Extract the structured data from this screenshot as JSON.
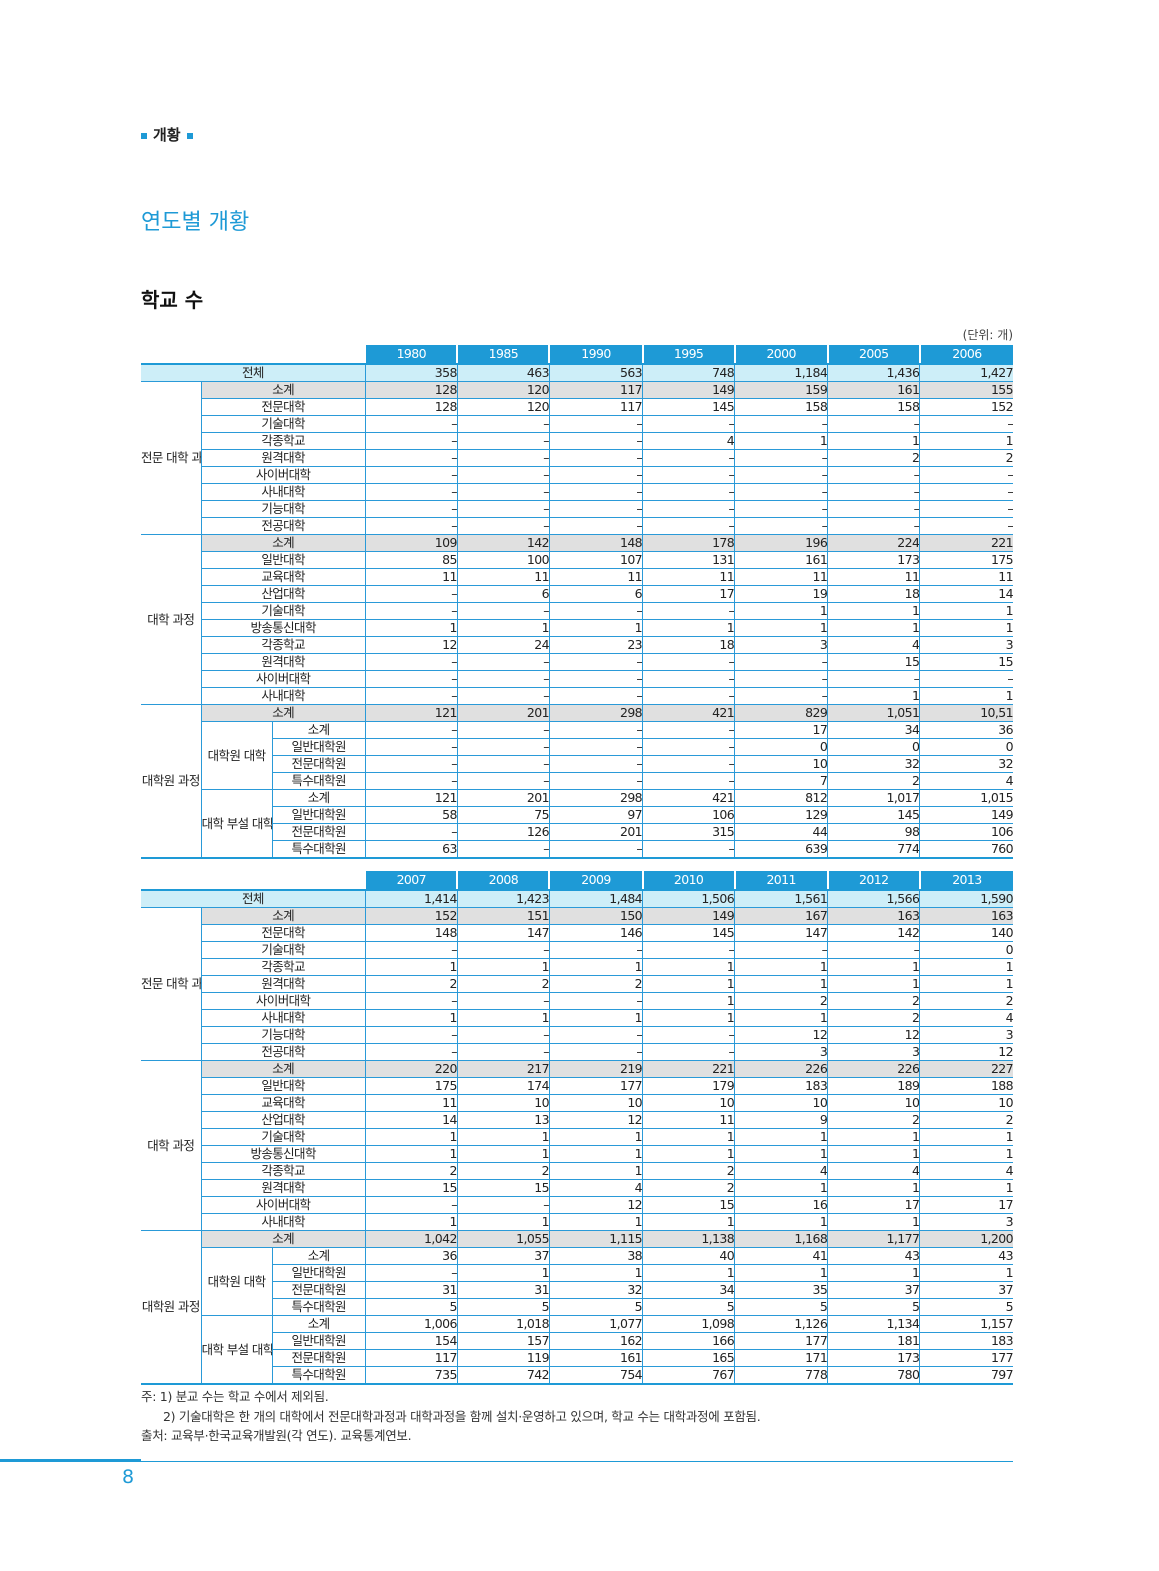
{
  "header": {
    "section_tag": "개황"
  },
  "page_title": "연도별 개황",
  "sub_title": "학교 수",
  "unit": "(단위: 개)",
  "colors": {
    "accent": "#1e9ad6",
    "total_row": "#cdeef8",
    "subtotal_row": "#e0e0e0"
  },
  "tables": [
    {
      "years": [
        "1980",
        "1985",
        "1990",
        "1995",
        "2000",
        "2005",
        "2006"
      ],
      "total": {
        "label": "전체",
        "values": [
          "358",
          "463",
          "563",
          "748",
          "1,184",
          "1,436",
          "1,427"
        ]
      },
      "groups": [
        {
          "label": "전문\n대학\n과정",
          "rows": [
            {
              "label": "소계",
              "subtotal": true,
              "values": [
                "128",
                "120",
                "117",
                "149",
                "159",
                "161",
                "155"
              ]
            },
            {
              "label": "전문대학",
              "values": [
                "128",
                "120",
                "117",
                "145",
                "158",
                "158",
                "152"
              ]
            },
            {
              "label": "기술대학",
              "values": [
                "–",
                "–",
                "–",
                "–",
                "–",
                "–",
                "–"
              ]
            },
            {
              "label": "각종학교",
              "values": [
                "–",
                "–",
                "–",
                "4",
                "1",
                "1",
                "1"
              ]
            },
            {
              "label": "원격대학",
              "values": [
                "–",
                "–",
                "–",
                "–",
                "–",
                "2",
                "2"
              ]
            },
            {
              "label": "사이버대학",
              "values": [
                "–",
                "–",
                "–",
                "–",
                "–",
                "–",
                "–"
              ]
            },
            {
              "label": "사내대학",
              "values": [
                "–",
                "–",
                "–",
                "–",
                "–",
                "–",
                "–"
              ]
            },
            {
              "label": "기능대학",
              "values": [
                "–",
                "–",
                "–",
                "–",
                "–",
                "–",
                "–"
              ]
            },
            {
              "label": "전공대학",
              "values": [
                "–",
                "–",
                "–",
                "–",
                "–",
                "–",
                "–"
              ]
            }
          ]
        },
        {
          "label": "대학\n과정",
          "rows": [
            {
              "label": "소계",
              "subtotal": true,
              "values": [
                "109",
                "142",
                "148",
                "178",
                "196",
                "224",
                "221"
              ]
            },
            {
              "label": "일반대학",
              "values": [
                "85",
                "100",
                "107",
                "131",
                "161",
                "173",
                "175"
              ]
            },
            {
              "label": "교육대학",
              "values": [
                "11",
                "11",
                "11",
                "11",
                "11",
                "11",
                "11"
              ]
            },
            {
              "label": "산업대학",
              "values": [
                "–",
                "6",
                "6",
                "17",
                "19",
                "18",
                "14"
              ]
            },
            {
              "label": "기술대학",
              "values": [
                "–",
                "–",
                "–",
                "–",
                "1",
                "1",
                "1"
              ]
            },
            {
              "label": "방송통신대학",
              "values": [
                "1",
                "1",
                "1",
                "1",
                "1",
                "1",
                "1"
              ]
            },
            {
              "label": "각종학교",
              "values": [
                "12",
                "24",
                "23",
                "18",
                "3",
                "4",
                "3"
              ]
            },
            {
              "label": "원격대학",
              "values": [
                "–",
                "–",
                "–",
                "–",
                "–",
                "15",
                "15"
              ]
            },
            {
              "label": "사이버대학",
              "values": [
                "–",
                "–",
                "–",
                "–",
                "–",
                "–",
                "–"
              ]
            },
            {
              "label": "사내대학",
              "values": [
                "–",
                "–",
                "–",
                "–",
                "–",
                "1",
                "1"
              ]
            }
          ]
        },
        {
          "label": "대학원\n과정",
          "subtotal": {
            "label": "소계",
            "values": [
              "121",
              "201",
              "298",
              "421",
              "829",
              "1,051",
              "10,51"
            ]
          },
          "subgroups": [
            {
              "label": "대학원\n대학",
              "rows": [
                {
                  "label": "소계",
                  "values": [
                    "–",
                    "–",
                    "–",
                    "–",
                    "17",
                    "34",
                    "36"
                  ]
                },
                {
                  "label": "일반대학원",
                  "values": [
                    "–",
                    "–",
                    "–",
                    "–",
                    "0",
                    "0",
                    "0"
                  ]
                },
                {
                  "label": "전문대학원",
                  "values": [
                    "–",
                    "–",
                    "–",
                    "–",
                    "10",
                    "32",
                    "32"
                  ]
                },
                {
                  "label": "특수대학원",
                  "values": [
                    "–",
                    "–",
                    "–",
                    "–",
                    "7",
                    "2",
                    "4"
                  ]
                }
              ]
            },
            {
              "label": "대학\n부설\n대학원",
              "rows": [
                {
                  "label": "소계",
                  "values": [
                    "121",
                    "201",
                    "298",
                    "421",
                    "812",
                    "1,017",
                    "1,015"
                  ]
                },
                {
                  "label": "일반대학원",
                  "values": [
                    "58",
                    "75",
                    "97",
                    "106",
                    "129",
                    "145",
                    "149"
                  ]
                },
                {
                  "label": "전문대학원",
                  "values": [
                    "–",
                    "126",
                    "201",
                    "315",
                    "44",
                    "98",
                    "106"
                  ]
                },
                {
                  "label": "특수대학원",
                  "values": [
                    "63",
                    "–",
                    "–",
                    "–",
                    "639",
                    "774",
                    "760"
                  ]
                }
              ]
            }
          ]
        }
      ]
    },
    {
      "years": [
        "2007",
        "2008",
        "2009",
        "2010",
        "2011",
        "2012",
        "2013"
      ],
      "total": {
        "label": "전체",
        "values": [
          "1,414",
          "1,423",
          "1,484",
          "1,506",
          "1,561",
          "1,566",
          "1,590"
        ]
      },
      "groups": [
        {
          "label": "전문\n대학\n과정",
          "rows": [
            {
              "label": "소계",
              "subtotal": true,
              "values": [
                "152",
                "151",
                "150",
                "149",
                "167",
                "163",
                "163"
              ]
            },
            {
              "label": "전문대학",
              "values": [
                "148",
                "147",
                "146",
                "145",
                "147",
                "142",
                "140"
              ]
            },
            {
              "label": "기술대학",
              "values": [
                "–",
                "–",
                "–",
                "–",
                "–",
                "–",
                "0"
              ]
            },
            {
              "label": "각종학교",
              "values": [
                "1",
                "1",
                "1",
                "1",
                "1",
                "1",
                "1"
              ]
            },
            {
              "label": "원격대학",
              "values": [
                "2",
                "2",
                "2",
                "1",
                "1",
                "1",
                "1"
              ]
            },
            {
              "label": "사이버대학",
              "values": [
                "–",
                "–",
                "–",
                "1",
                "2",
                "2",
                "2"
              ]
            },
            {
              "label": "사내대학",
              "values": [
                "1",
                "1",
                "1",
                "1",
                "1",
                "2",
                "4"
              ]
            },
            {
              "label": "기능대학",
              "values": [
                "–",
                "–",
                "–",
                "–",
                "12",
                "12",
                "3"
              ]
            },
            {
              "label": "전공대학",
              "values": [
                "–",
                "–",
                "–",
                "–",
                "3",
                "3",
                "12"
              ]
            }
          ]
        },
        {
          "label": "대학\n과정",
          "rows": [
            {
              "label": "소계",
              "subtotal": true,
              "values": [
                "220",
                "217",
                "219",
                "221",
                "226",
                "226",
                "227"
              ]
            },
            {
              "label": "일반대학",
              "values": [
                "175",
                "174",
                "177",
                "179",
                "183",
                "189",
                "188"
              ]
            },
            {
              "label": "교육대학",
              "values": [
                "11",
                "10",
                "10",
                "10",
                "10",
                "10",
                "10"
              ]
            },
            {
              "label": "산업대학",
              "values": [
                "14",
                "13",
                "12",
                "11",
                "9",
                "2",
                "2"
              ]
            },
            {
              "label": "기술대학",
              "values": [
                "1",
                "1",
                "1",
                "1",
                "1",
                "1",
                "1"
              ]
            },
            {
              "label": "방송통신대학",
              "values": [
                "1",
                "1",
                "1",
                "1",
                "1",
                "1",
                "1"
              ]
            },
            {
              "label": "각종학교",
              "values": [
                "2",
                "2",
                "1",
                "2",
                "4",
                "4",
                "4"
              ]
            },
            {
              "label": "원격대학",
              "values": [
                "15",
                "15",
                "4",
                "2",
                "1",
                "1",
                "1"
              ]
            },
            {
              "label": "사이버대학",
              "values": [
                "–",
                "–",
                "12",
                "15",
                "16",
                "17",
                "17"
              ]
            },
            {
              "label": "사내대학",
              "values": [
                "1",
                "1",
                "1",
                "1",
                "1",
                "1",
                "3"
              ]
            }
          ]
        },
        {
          "label": "대학원\n과정",
          "subtotal": {
            "label": "소계",
            "values": [
              "1,042",
              "1,055",
              "1,115",
              "1,138",
              "1,168",
              "1,177",
              "1,200"
            ]
          },
          "subgroups": [
            {
              "label": "대학원\n대학",
              "rows": [
                {
                  "label": "소계",
                  "values": [
                    "36",
                    "37",
                    "38",
                    "40",
                    "41",
                    "43",
                    "43"
                  ]
                },
                {
                  "label": "일반대학원",
                  "values": [
                    "–",
                    "1",
                    "1",
                    "1",
                    "1",
                    "1",
                    "1"
                  ]
                },
                {
                  "label": "전문대학원",
                  "values": [
                    "31",
                    "31",
                    "32",
                    "34",
                    "35",
                    "37",
                    "37"
                  ]
                },
                {
                  "label": "특수대학원",
                  "values": [
                    "5",
                    "5",
                    "5",
                    "5",
                    "5",
                    "5",
                    "5"
                  ]
                }
              ]
            },
            {
              "label": "대학\n부설\n대학원",
              "rows": [
                {
                  "label": "소계",
                  "values": [
                    "1,006",
                    "1,018",
                    "1,077",
                    "1,098",
                    "1,126",
                    "1,134",
                    "1,157"
                  ]
                },
                {
                  "label": "일반대학원",
                  "values": [
                    "154",
                    "157",
                    "162",
                    "166",
                    "177",
                    "181",
                    "183"
                  ]
                },
                {
                  "label": "전문대학원",
                  "values": [
                    "117",
                    "119",
                    "161",
                    "165",
                    "171",
                    "173",
                    "177"
                  ]
                },
                {
                  "label": "특수대학원",
                  "values": [
                    "735",
                    "742",
                    "754",
                    "767",
                    "778",
                    "780",
                    "797"
                  ]
                }
              ]
            }
          ]
        }
      ]
    }
  ],
  "notes": [
    "주: 1) 분교 수는 학교 수에서 제외됨.",
    "2) 기술대학은 한 개의 대학에서 전문대학과정과 대학과정을 함께 설치·운영하고 있으며, 학교 수는 대학과정에 포함됨.",
    "출처: 교육부·한국교육개발원(각 연도). 교육통계연보."
  ],
  "page_number": "8"
}
